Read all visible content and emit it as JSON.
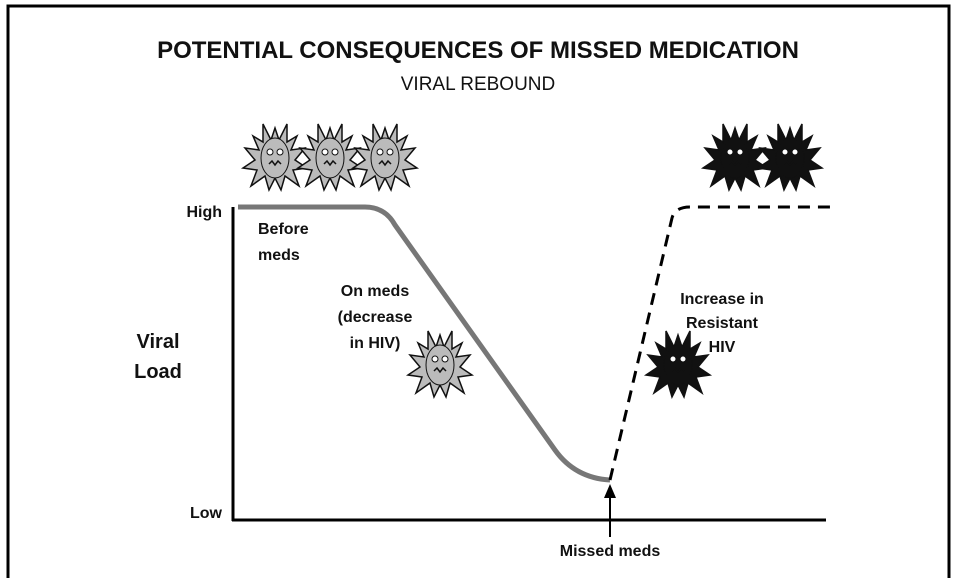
{
  "header": {
    "title": "POTENTIAL CONSEQUENCES OF MISSED MEDICATION",
    "subtitle": "VIRAL REBOUND"
  },
  "axis": {
    "title_lines": [
      "Viral",
      "Load"
    ],
    "high": "High",
    "low": "Low"
  },
  "annotations": {
    "before": [
      "Before",
      "meds"
    ],
    "on_meds": [
      "On meds",
      "(decrease",
      "in HIV)"
    ],
    "resistant": [
      "Increase in",
      "Resistant",
      "HIV"
    ],
    "missed": "Missed meds"
  }
}
